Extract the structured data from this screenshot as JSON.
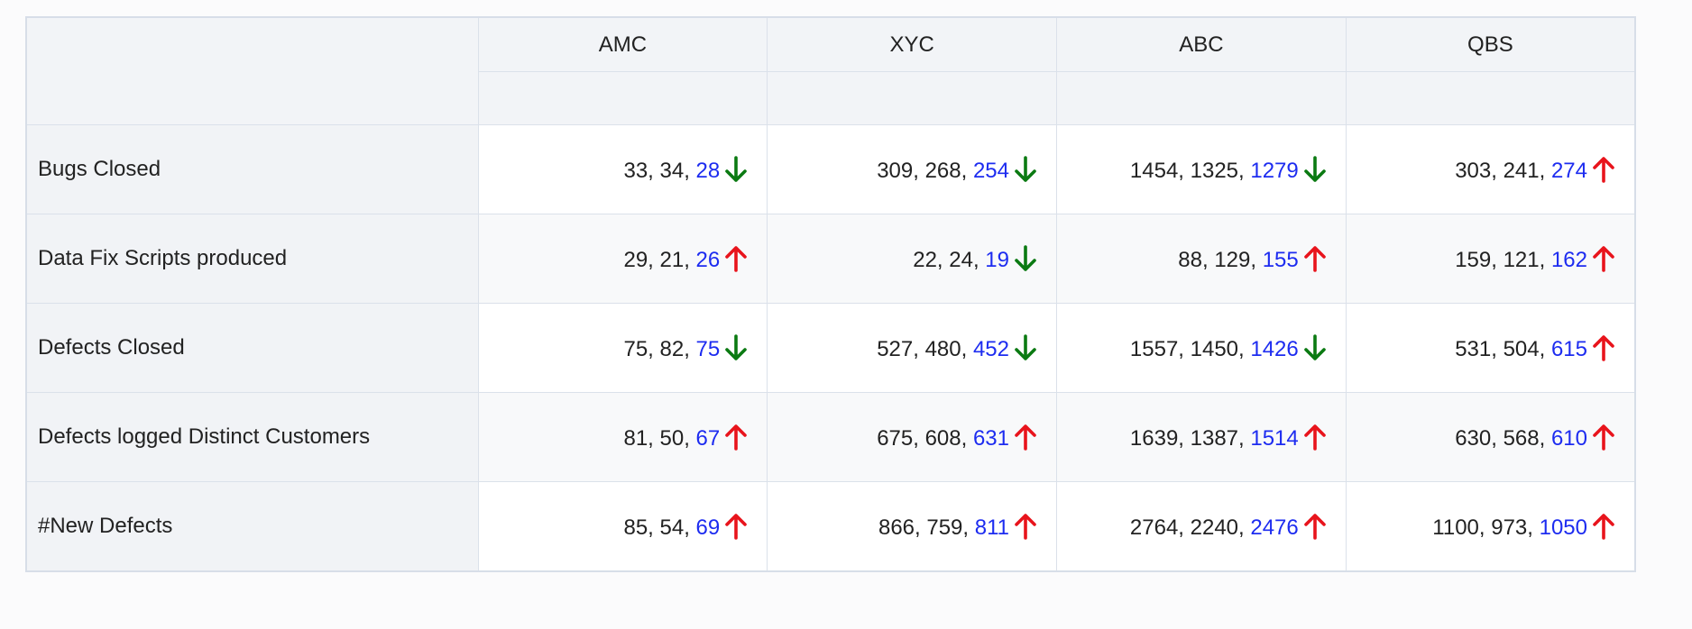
{
  "colors": {
    "up": "#e8141c",
    "down": "#0b7a12",
    "latest": "#1d2cf0"
  },
  "columns": [
    "AMC",
    "XYC",
    "ABC",
    "QBS"
  ],
  "rows": [
    {
      "label": "Bugs Closed",
      "cells": [
        {
          "prefix": "33, 34, ",
          "latest": "28",
          "trend": "down"
        },
        {
          "prefix": "309, 268, ",
          "latest": "254",
          "trend": "down"
        },
        {
          "prefix": "1454, 1325, ",
          "latest": "1279",
          "trend": "down"
        },
        {
          "prefix": "303, 241, ",
          "latest": "274",
          "trend": "up"
        }
      ]
    },
    {
      "label": "Data Fix Scripts produced",
      "cells": [
        {
          "prefix": "29, 21, ",
          "latest": "26",
          "trend": "up"
        },
        {
          "prefix": "22, 24, ",
          "latest": "19",
          "trend": "down"
        },
        {
          "prefix": "88, 129, ",
          "latest": "155",
          "trend": "up"
        },
        {
          "prefix": "159, 121, ",
          "latest": "162",
          "trend": "up"
        }
      ]
    },
    {
      "label": "Defects Closed",
      "cells": [
        {
          "prefix": "75, 82, ",
          "latest": "75",
          "trend": "down"
        },
        {
          "prefix": "527, 480, ",
          "latest": "452",
          "trend": "down"
        },
        {
          "prefix": "1557, 1450, ",
          "latest": "1426",
          "trend": "down",
          "highlight": true
        },
        {
          "prefix": "531, 504, ",
          "latest": "615",
          "trend": "up"
        }
      ]
    },
    {
      "label": "Defects logged Distinct Customers",
      "cells": [
        {
          "prefix": "81, 50, ",
          "latest": "67",
          "trend": "up"
        },
        {
          "prefix": "675, 608, ",
          "latest": "631",
          "trend": "up"
        },
        {
          "prefix": "1639, 1387, ",
          "latest": "1514",
          "trend": "up"
        },
        {
          "prefix": "630, 568, ",
          "latest": "610",
          "trend": "up"
        }
      ]
    },
    {
      "label": "#New Defects",
      "cells": [
        {
          "prefix": "85, 54, ",
          "latest": "69",
          "trend": "up"
        },
        {
          "prefix": "866, 759, ",
          "latest": "811",
          "trend": "up"
        },
        {
          "prefix": "2764, 2240, ",
          "latest": "2476",
          "trend": "up"
        },
        {
          "prefix": "1100, 973, ",
          "latest": "1050",
          "trend": "up"
        }
      ]
    }
  ]
}
